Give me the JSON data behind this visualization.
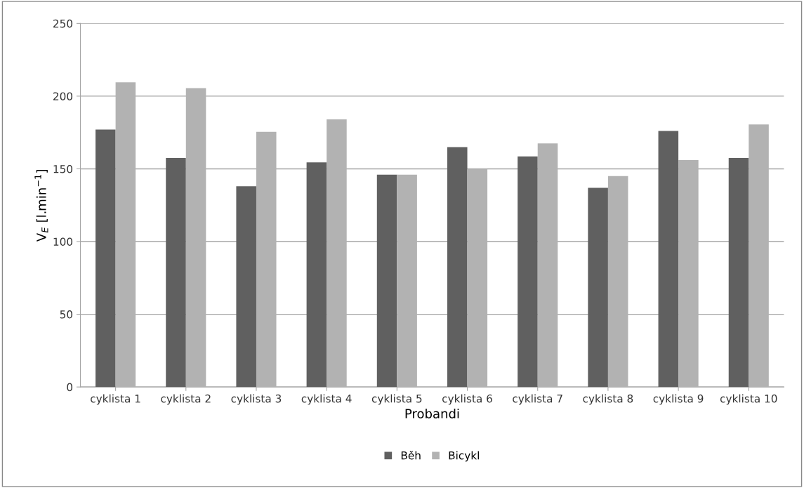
{
  "chart_data": {
    "type": "bar",
    "xlabel": "Probandi",
    "ylabel": "V$_{E}$ [l.min$^{−1}$]",
    "categories": [
      "cyklista 1",
      "cyklista 2",
      "cyklista 3",
      "cyklista 4",
      "cyklista 5",
      "cyklista 6",
      "cyklista 7",
      "cyklista 8",
      "cyklista 9",
      "cyklista 10"
    ],
    "series": [
      {
        "name": "Běh",
        "color": "#606060",
        "values": [
          177,
          157.5,
          138,
          154.5,
          146,
          165,
          158.5,
          137,
          176,
          157.5
        ]
      },
      {
        "name": "Bicykl",
        "color": "#b2b2b2",
        "values": [
          209.5,
          205.5,
          175.5,
          184,
          146,
          150,
          167.5,
          145,
          156,
          180.5
        ]
      }
    ],
    "ylim": [
      0,
      250
    ],
    "yticks": [
      0,
      50,
      100,
      150,
      200,
      250
    ],
    "grid": "y",
    "legend": "bottom"
  }
}
